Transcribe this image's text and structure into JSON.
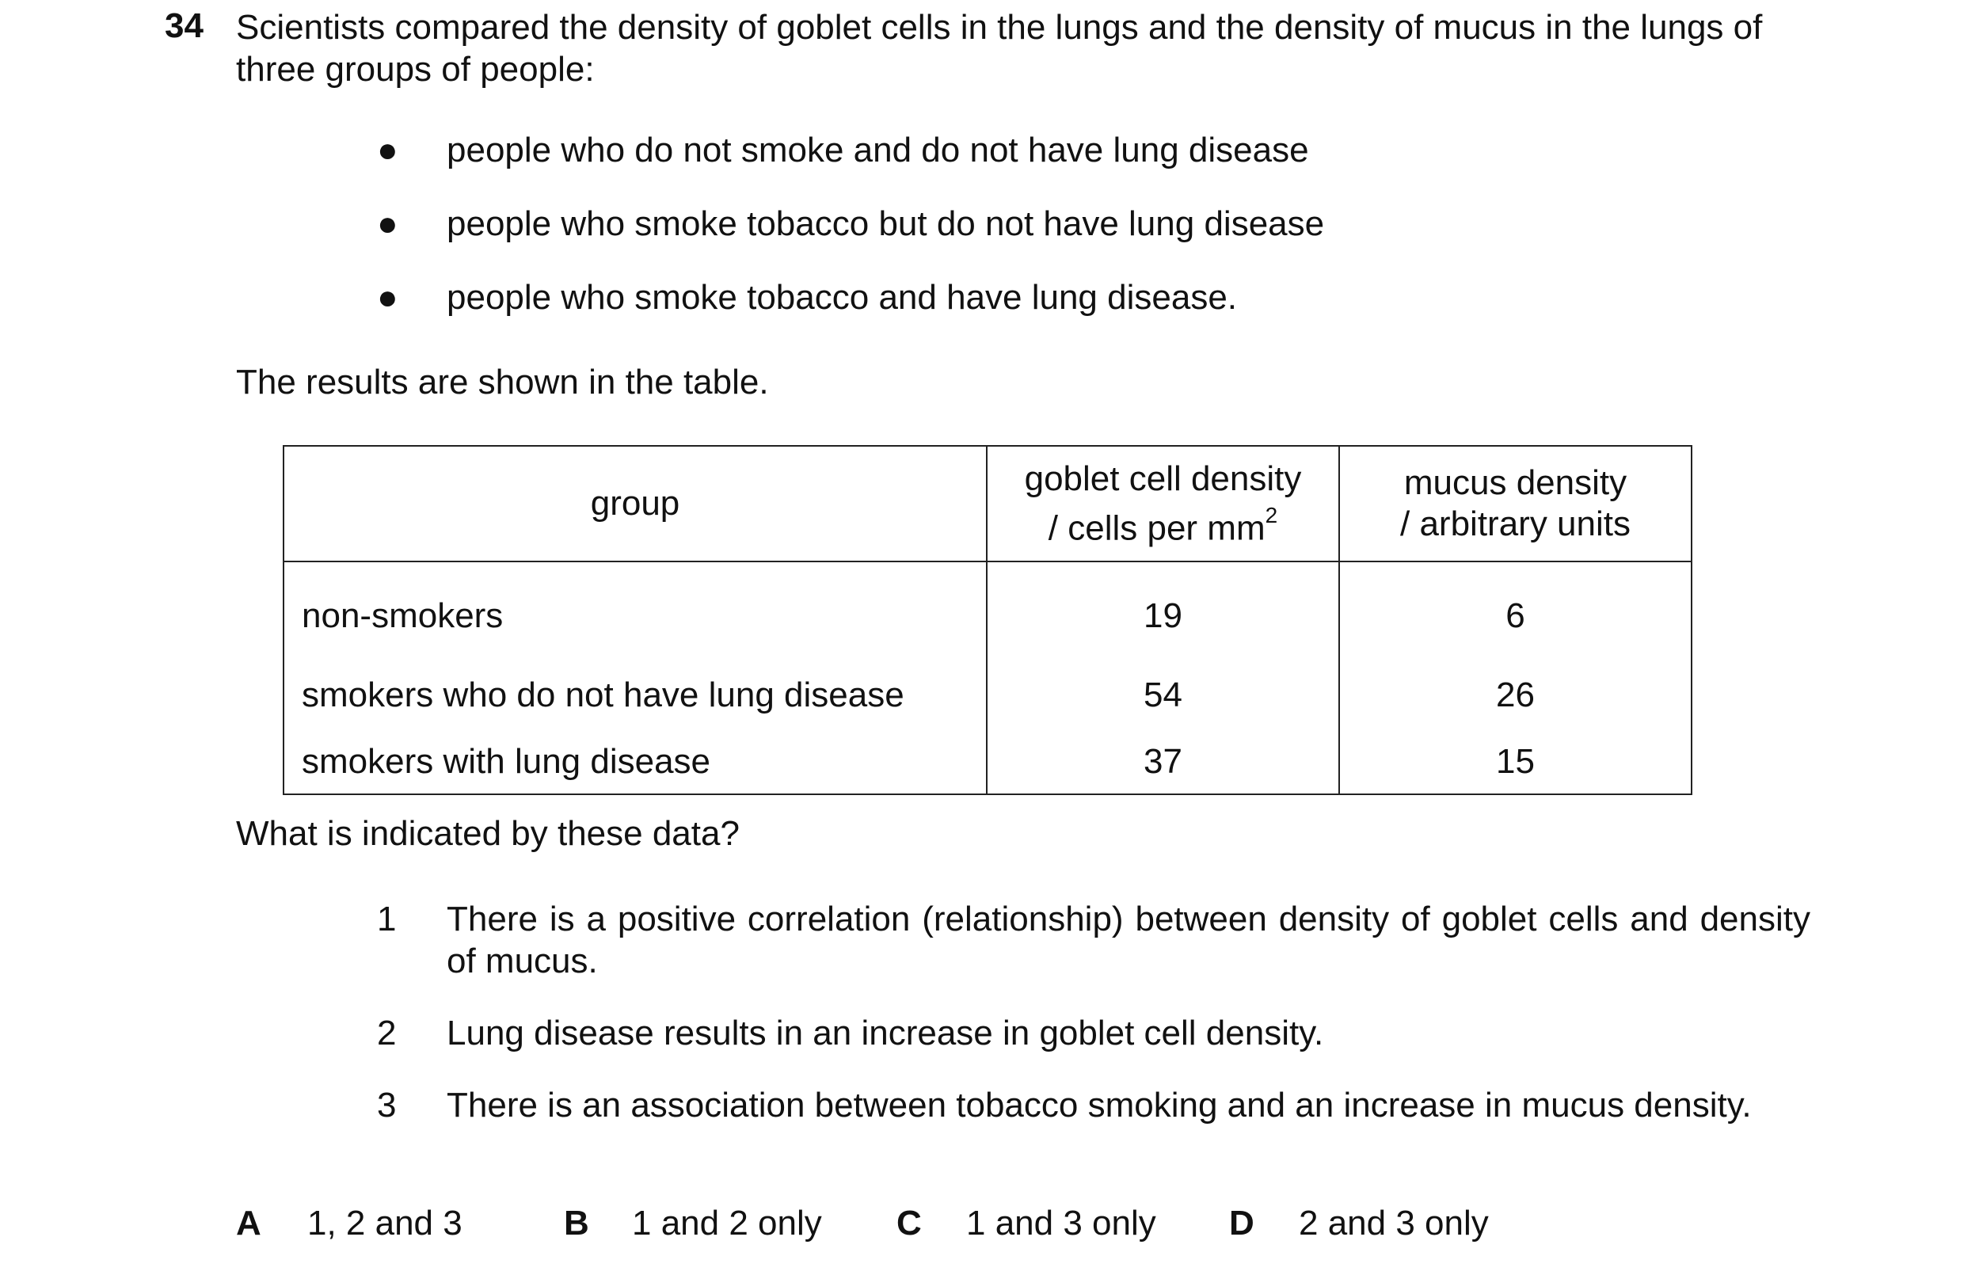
{
  "question": {
    "number": "34",
    "stem": "Scientists compared the density of goblet cells in the lungs and the density of mucus in the lungs of three groups of people:",
    "bullets": [
      "people who do not smoke and do not have lung disease",
      "people who smoke tobacco but do not have lung disease",
      "people who smoke tobacco and have lung disease."
    ],
    "bullet_symbol": "●",
    "intro": "The results are shown in the table.",
    "prompt": "What is indicated by these data?"
  },
  "table": {
    "headers": {
      "group": "group",
      "goblet_line1": "goblet cell density",
      "goblet_line2": "/ cells per mm",
      "goblet_sup": "2",
      "mucus_line1": "mucus density",
      "mucus_line2": "/ arbitrary units"
    },
    "rows": [
      {
        "group": "non-smokers",
        "goblet": "19",
        "mucus": "6"
      },
      {
        "group": "smokers who do not have lung disease",
        "goblet": "54",
        "mucus": "26"
      },
      {
        "group": "smokers with lung disease",
        "goblet": "37",
        "mucus": "15"
      }
    ]
  },
  "statements": [
    {
      "number": "1",
      "text": "There is a positive correlation (relationship) between density of goblet cells and density of mucus."
    },
    {
      "number": "2",
      "text": "Lung disease results in an increase in goblet cell density."
    },
    {
      "number": "3",
      "text": "There is an association between tobacco smoking and an increase in mucus density."
    }
  ],
  "options": [
    {
      "letter": "A",
      "text": "1, 2 and 3"
    },
    {
      "letter": "B",
      "text": "1 and 2 only"
    },
    {
      "letter": "C",
      "text": "1 and 3 only"
    },
    {
      "letter": "D",
      "text": "2 and 3 only"
    }
  ]
}
